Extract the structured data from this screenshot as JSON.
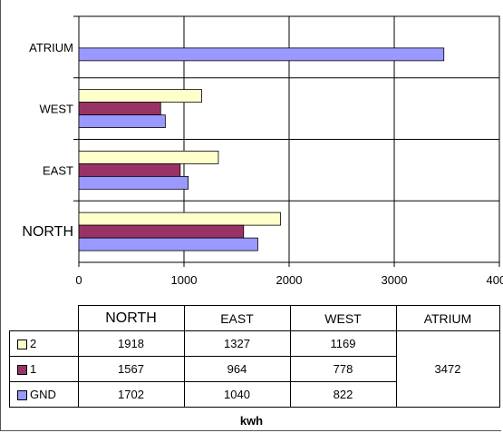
{
  "chart_data": {
    "type": "bar",
    "orientation": "horizontal",
    "categories": [
      "NORTH",
      "EAST",
      "WEST",
      "ATRIUM"
    ],
    "series": [
      {
        "name": "2",
        "color": "#ffffcc",
        "values": [
          1918,
          1327,
          1169,
          null
        ]
      },
      {
        "name": "1",
        "color": "#993366",
        "values": [
          1567,
          964,
          778,
          null
        ]
      },
      {
        "name": "GND",
        "color": "#9999ff",
        "values": [
          1702,
          1040,
          822,
          3472
        ]
      }
    ],
    "xlim": [
      0,
      4000
    ],
    "xticks": [
      "0",
      "1000",
      "2000",
      "3000",
      "4000"
    ],
    "xlabel": "kwh",
    "grid": true,
    "legend": "table-left",
    "table": {
      "headers": [
        "NORTH",
        "EAST",
        "WEST",
        "ATRIUM"
      ],
      "rows": [
        {
          "label": "2",
          "cells": [
            "1918",
            "1327",
            "1169"
          ]
        },
        {
          "label": "1",
          "cells": [
            "1567",
            "964",
            "778"
          ]
        },
        {
          "label": "GND",
          "cells": [
            "1702",
            "1040",
            "822"
          ]
        }
      ],
      "atrium_value": "3472"
    }
  }
}
